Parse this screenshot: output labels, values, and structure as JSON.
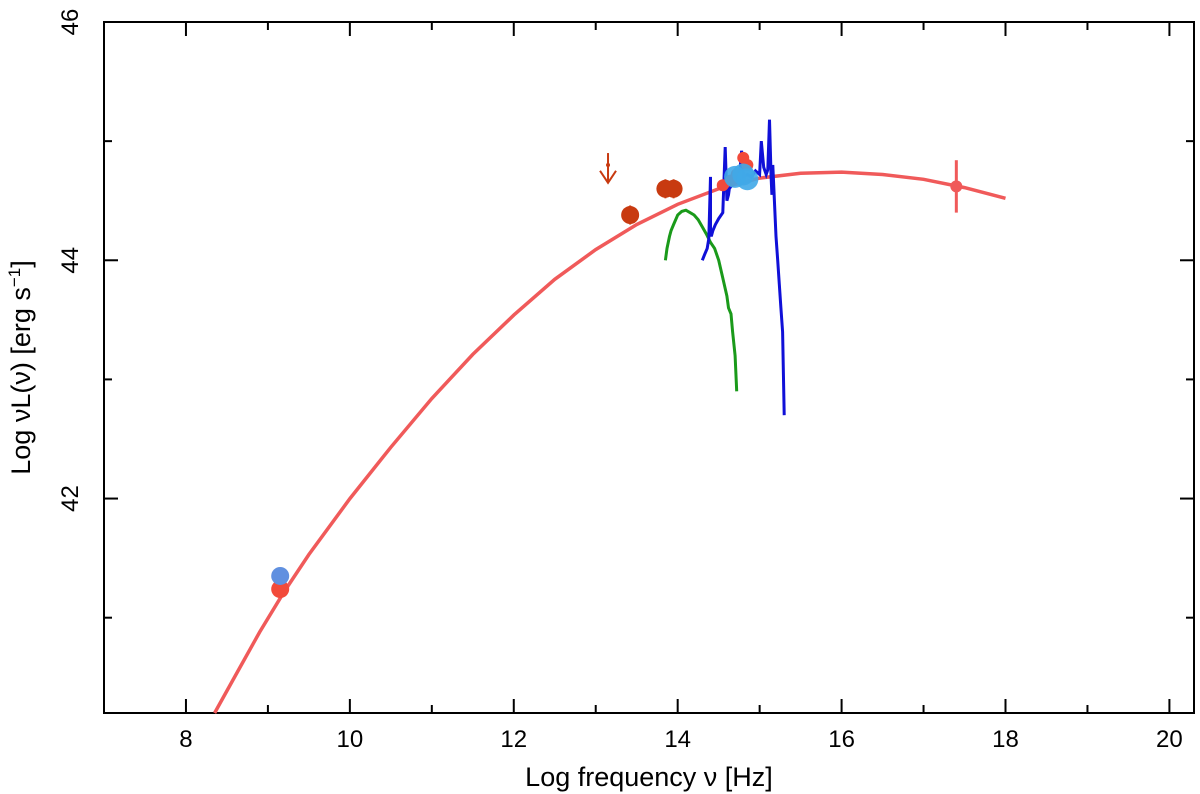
{
  "chart_data": {
    "type": "scatter",
    "xlabel": "Log frequency ν [Hz]",
    "ylabel_main": "Log νL(ν) [erg s",
    "ylabel_sup": "−1",
    "ylabel_end": "]",
    "xlim": [
      7,
      20.3
    ],
    "ylim": [
      40.2,
      46
    ],
    "x_ticks": [
      8,
      10,
      12,
      14,
      16,
      18,
      20
    ],
    "x_minor_ticks": [
      9,
      11,
      13,
      15,
      17,
      19
    ],
    "x_tick_labels": [
      "8",
      "10",
      "12",
      "14",
      "16",
      "18",
      "20"
    ],
    "y_ticks": [
      42,
      44,
      46
    ],
    "y_minor_ticks": [
      41,
      43,
      45
    ],
    "y_tick_labels": [
      "42",
      "44",
      "46"
    ],
    "grid": false,
    "colors": {
      "fit": "#f05a5a",
      "green": "#1a9a1a",
      "blue": "#1010d8",
      "red": "#f24a3a",
      "darkred": "#c83a10",
      "lightblue": "#6090e0",
      "cyan": "#40a8e8",
      "xray": "#f05a5a"
    },
    "fit_curve": {
      "name": "parabolic fit",
      "x": [
        8.35,
        8.6,
        8.9,
        9.2,
        9.5,
        10.0,
        10.5,
        11.0,
        11.5,
        12.0,
        12.5,
        13.0,
        13.5,
        14.0,
        14.5,
        15.0,
        15.5,
        16.0,
        16.5,
        17.0,
        17.5,
        18.0
      ],
      "y": [
        40.2,
        40.51,
        40.88,
        41.22,
        41.53,
        42.0,
        42.43,
        42.84,
        43.21,
        43.54,
        43.84,
        44.09,
        44.3,
        44.47,
        44.6,
        44.69,
        44.73,
        44.74,
        44.72,
        44.68,
        44.61,
        44.52
      ]
    },
    "green_spectrum": {
      "x": [
        13.85,
        13.87,
        13.9,
        13.92,
        13.95,
        14.0,
        14.05,
        14.1,
        14.15,
        14.2,
        14.25,
        14.3,
        14.35,
        14.4,
        14.45,
        14.5,
        14.55,
        14.6,
        14.62,
        14.65,
        14.67,
        14.7,
        14.72
      ],
      "y": [
        44.0,
        44.1,
        44.2,
        44.25,
        44.3,
        44.38,
        44.41,
        44.42,
        44.4,
        44.38,
        44.34,
        44.28,
        44.22,
        44.15,
        44.1,
        44.0,
        43.85,
        43.7,
        43.6,
        43.55,
        43.4,
        43.2,
        42.9
      ]
    },
    "blue_spectrum": {
      "x": [
        14.3,
        14.33,
        14.36,
        14.38,
        14.4,
        14.4,
        14.41,
        14.43,
        14.46,
        14.5,
        14.55,
        14.58,
        14.6,
        14.62,
        14.63,
        14.65,
        14.7,
        14.75,
        14.78,
        14.8,
        14.85,
        14.9,
        14.95,
        15.0,
        15.02,
        15.05,
        15.08,
        15.1,
        15.12,
        15.14,
        15.15,
        15.16,
        15.18,
        15.2,
        15.22,
        15.24,
        15.26,
        15.28,
        15.3
      ],
      "y": [
        44.0,
        44.05,
        44.1,
        44.18,
        44.7,
        44.25,
        44.2,
        44.25,
        44.3,
        44.35,
        44.4,
        44.95,
        44.5,
        44.55,
        44.6,
        44.62,
        44.65,
        44.68,
        44.92,
        44.7,
        44.72,
        44.7,
        44.75,
        44.72,
        45.0,
        44.78,
        44.72,
        44.76,
        45.18,
        44.7,
        44.55,
        44.8,
        44.5,
        44.2,
        44.0,
        43.8,
        43.6,
        43.4,
        42.7
      ]
    },
    "points_red": {
      "name": "red points",
      "x": [
        9.15,
        14.55,
        14.65,
        14.72,
        14.8,
        14.85
      ],
      "y": [
        41.24,
        44.63,
        44.67,
        44.72,
        44.86,
        44.8
      ]
    },
    "points_darkred": {
      "name": "dark red points",
      "x": [
        13.42,
        13.85,
        13.95
      ],
      "y": [
        44.38,
        44.6,
        44.6
      ]
    },
    "points_lightblue": {
      "name": "light blue points",
      "x": [
        9.15
      ],
      "y": [
        41.35
      ]
    },
    "points_cyan": {
      "name": "cyan points",
      "x": [
        14.7,
        14.8,
        14.85
      ],
      "y": [
        44.7,
        44.72,
        44.68
      ]
    },
    "upper_limit": {
      "x": 13.15,
      "y": 44.9,
      "y_end": 44.65
    },
    "xray_point": {
      "x": 17.4,
      "y": 44.62,
      "err": 0.22
    }
  }
}
